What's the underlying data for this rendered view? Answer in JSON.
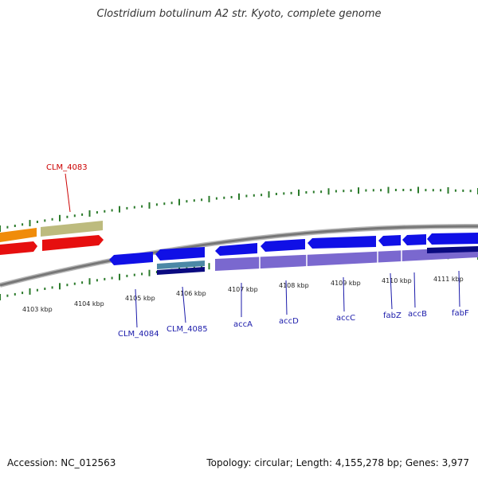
{
  "title": "Clostridium botulinum A2 str. Kyoto, complete genome",
  "footer": {
    "accession": "Accession: NC_012563",
    "genome_info": "Topology: circular; Length: 4,155,278 bp; Genes: 3,977"
  },
  "kbp_labels": [
    "4103 kbp",
    "4104 kbp",
    "4105 kbp",
    "4106 kbp",
    "4107 kbp",
    "4108 kbp",
    "4109 kbp",
    "4110 kbp",
    "4111 kbp"
  ],
  "gene_labels": [
    "CLM_4083",
    "CLM_4084",
    "CLM_4085",
    "accA",
    "accD",
    "accC",
    "fabZ",
    "accB",
    "fabF"
  ],
  "colors": {
    "red_label": "#cc0000",
    "blue_label": "#1a1aaa",
    "tick_green": "#2a7a2a",
    "backbone": "#888888",
    "gene_blue": "#1010e6",
    "gene_purple": "#7a68cf",
    "gene_red": "#e60f0f",
    "gene_orange": "#f08c0a",
    "gene_khaki": "#bdbb7e",
    "gene_navy": "#0a0a80",
    "gene_teal": "#4c88a6"
  }
}
